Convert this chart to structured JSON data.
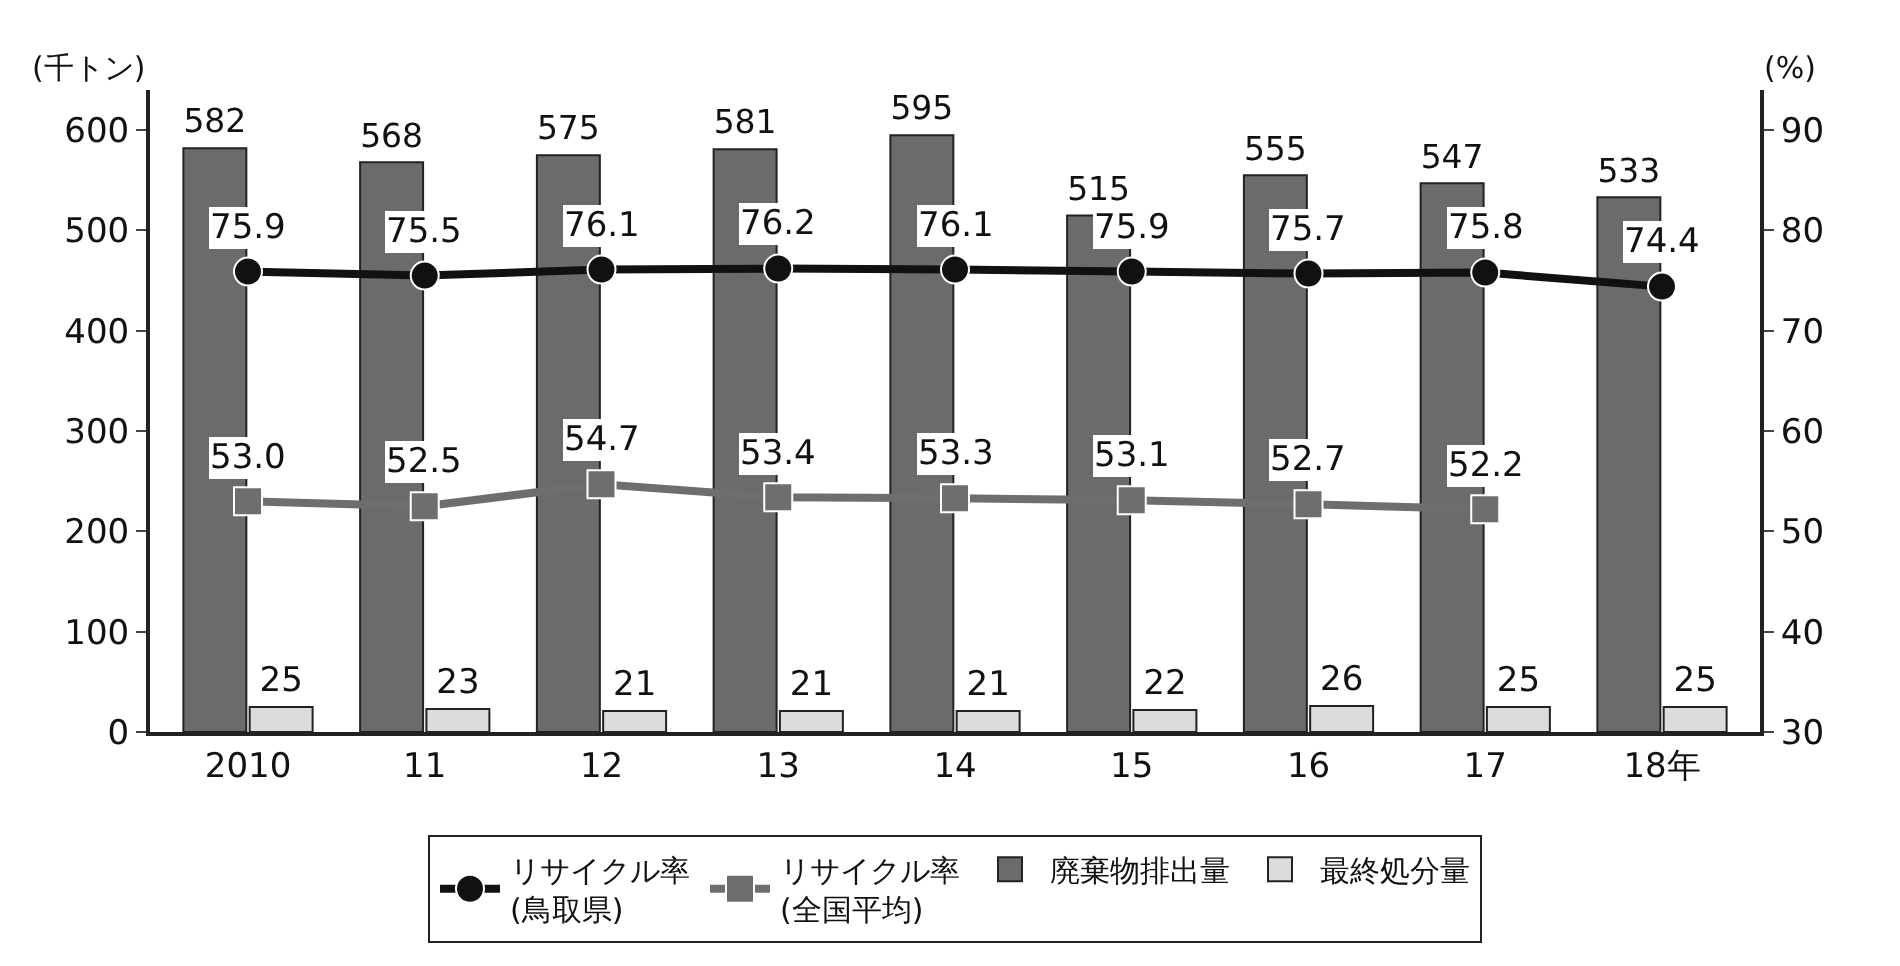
{
  "chart_data": {
    "type": "bar",
    "categories": [
      "2010",
      "11",
      "12",
      "13",
      "14",
      "15",
      "16",
      "17",
      "18年"
    ],
    "ylabel": "(千トン)",
    "y2label": "(%)",
    "ylim": [
      0,
      640
    ],
    "yticks": [
      0,
      100,
      200,
      300,
      400,
      500,
      600
    ],
    "y2lim": [
      30,
      94
    ],
    "y2ticks": [
      30,
      40,
      50,
      60,
      70,
      80,
      90
    ],
    "legend": "bottom",
    "series": [
      {
        "name": "リサイクル率\n(鳥取県)",
        "type": "line",
        "axis": "y2",
        "color": "#111111",
        "marker": "circle",
        "values": [
          75.9,
          75.5,
          76.1,
          76.2,
          76.1,
          75.9,
          75.7,
          75.8,
          74.4
        ],
        "value_labels": [
          "75.9",
          "75.5",
          "76.1",
          "76.2",
          "76.1",
          "75.9",
          "75.7",
          "75.8",
          "74.4"
        ]
      },
      {
        "name": "リサイクル率\n(全国平均)",
        "type": "line",
        "axis": "y2",
        "color": "#6e6e6e",
        "marker": "square",
        "values": [
          53.0,
          52.5,
          54.7,
          53.4,
          53.3,
          53.1,
          52.7,
          52.2,
          null
        ],
        "value_labels": [
          "53.0",
          "52.5",
          "54.7",
          "53.4",
          "53.3",
          "53.1",
          "52.7",
          "52.2",
          null
        ]
      },
      {
        "name": "廃棄物排出量",
        "color": "#6b6b6b",
        "values": [
          582,
          568,
          575,
          581,
          595,
          515,
          555,
          547,
          533
        ],
        "value_labels": [
          "582",
          "568",
          "575",
          "581",
          "595",
          "515",
          "555",
          "547",
          "533"
        ]
      },
      {
        "name": "最終処分量",
        "color": "#dcdcdc",
        "values": [
          25,
          23,
          21,
          21,
          21,
          22,
          26,
          25,
          25
        ],
        "value_labels": [
          "25",
          "23",
          "21",
          "21",
          "21",
          "22",
          "26",
          "25",
          "25"
        ]
      }
    ]
  }
}
